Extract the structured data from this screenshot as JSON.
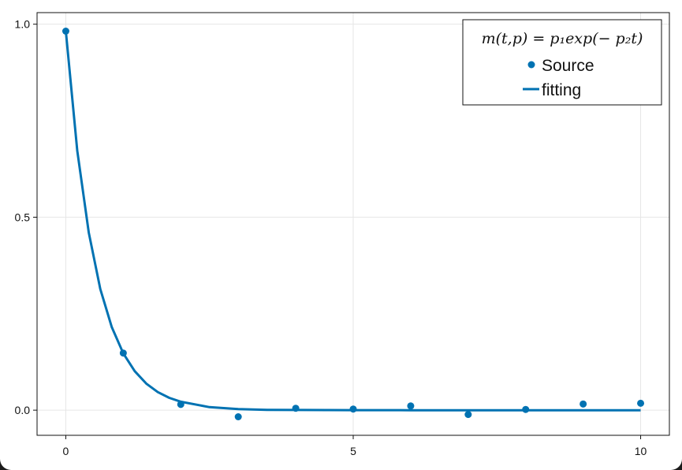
{
  "chart_data": {
    "type": "scatter",
    "title": "",
    "xlabel": "",
    "ylabel": "",
    "xlim": [
      -0.5,
      10.5
    ],
    "ylim": [
      -0.065,
      1.03
    ],
    "grid": true,
    "x_ticks": [
      0,
      5,
      10
    ],
    "x_tick_labels": [
      "0",
      "5",
      "10"
    ],
    "y_ticks": [
      0.0,
      0.5,
      1.0
    ],
    "y_tick_labels": [
      "0.0",
      "0.5",
      "1.0"
    ],
    "legend": {
      "placement": "top-right",
      "title": "m(t,p) = p₁exp(− p₂t)"
    },
    "series": [
      {
        "name": "Source",
        "kind": "scatter",
        "color": "#0072b2",
        "x": [
          0,
          1,
          2,
          3,
          4,
          5,
          6,
          7,
          8,
          9,
          10
        ],
        "y": [
          0.982,
          0.148,
          0.015,
          -0.017,
          0.005,
          0.003,
          0.011,
          -0.011,
          0.002,
          0.016,
          0.018
        ]
      },
      {
        "name": "fitting",
        "kind": "line",
        "color": "#0072b2",
        "x": [
          0,
          0.2,
          0.4,
          0.6,
          0.8,
          1.0,
          1.2,
          1.4,
          1.6,
          1.8,
          2.0,
          2.5,
          3.0,
          3.5,
          4.0,
          5.0,
          6.0,
          7.0,
          8.0,
          9.0,
          10.0
        ],
        "y": [
          0.982,
          0.672,
          0.46,
          0.314,
          0.215,
          0.147,
          0.101,
          0.069,
          0.047,
          0.032,
          0.022,
          0.008,
          0.003,
          0.001,
          0.0005,
          0.0001,
          0.0,
          0.0,
          0.0,
          0.0,
          0.0
        ]
      }
    ]
  }
}
